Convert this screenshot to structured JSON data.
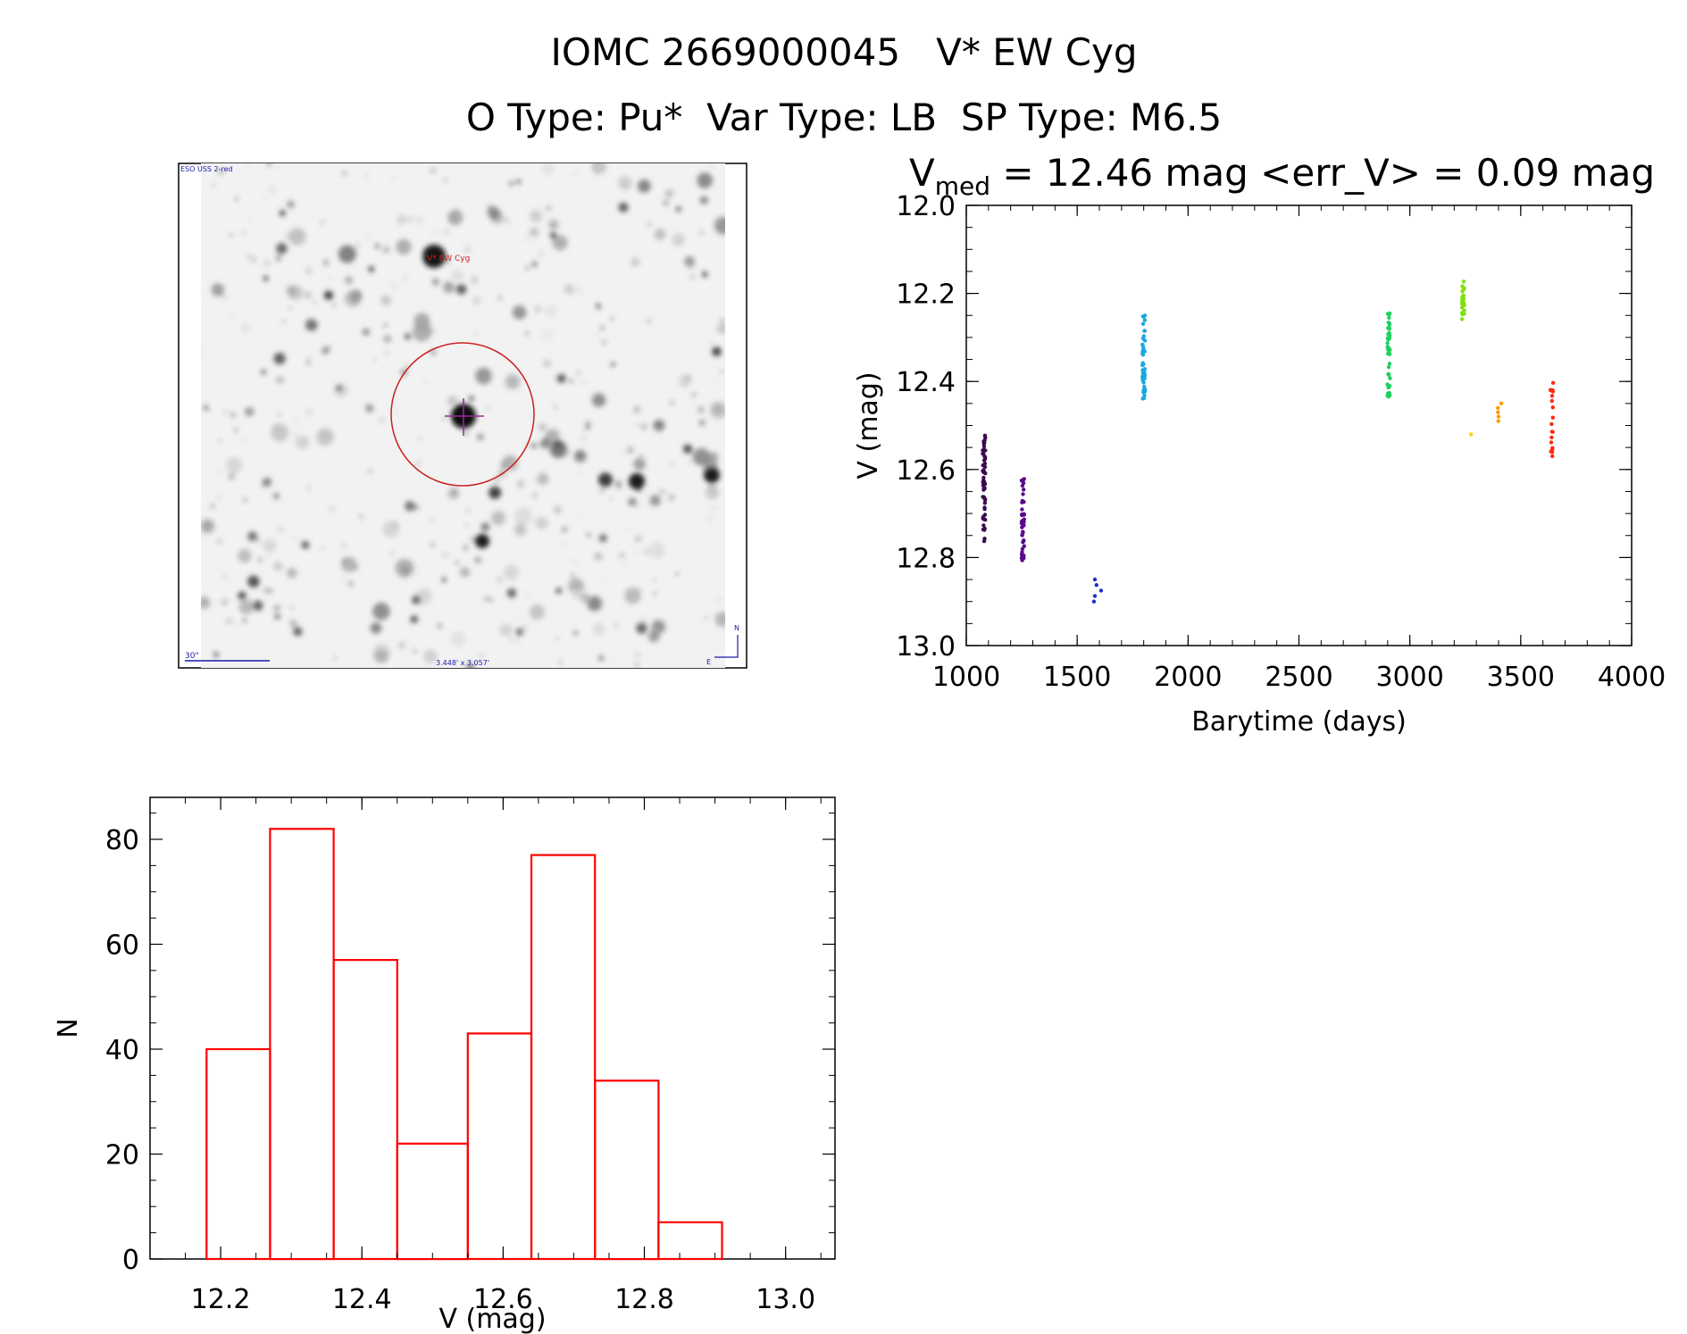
{
  "header": {
    "title_line1": "IOMC 2669000045   V* EW Cyg",
    "title_line2": "O Type: Pu*  Var Type: LB  SP Type: M6.5"
  },
  "finder_image": {
    "survey_label": "ESO USS 2-red",
    "target_label": "V* EW Cyg",
    "scale_label": "30\"",
    "fov_label": "3.448' x 3.057'",
    "north_label": "N",
    "east_label": "E",
    "colors": {
      "circle": "#cc2222",
      "cross": "#9a2a9a",
      "frame": "#000000",
      "annot": "#1a1aaa"
    }
  },
  "chart_data": [
    {
      "type": "scatter",
      "title_prefix": "V",
      "title_sub": "med",
      "title_suffix": " = 12.46 mag <err_V> = 0.09 mag",
      "xlabel": "Barytime (days)",
      "ylabel": "V (mag)",
      "xlim": [
        1000,
        4000
      ],
      "ylim": [
        13.0,
        12.0
      ],
      "xticks": [
        1000,
        1500,
        2000,
        2500,
        3000,
        3500,
        4000
      ],
      "xtick_labels": [
        "1000",
        "1500",
        "2000",
        "2500",
        "3000",
        "3500",
        "4000"
      ],
      "yticks": [
        12.0,
        12.2,
        12.4,
        12.6,
        12.8,
        13.0
      ],
      "ytick_labels": [
        "12.0",
        "12.2",
        "12.4",
        "12.6",
        "12.8",
        "13.0"
      ],
      "clusters": [
        {
          "x": 1080,
          "ymin": 12.51,
          "ymax": 12.77,
          "n": 55,
          "color": "#3a0a50"
        },
        {
          "x": 1255,
          "ymin": 12.62,
          "ymax": 12.81,
          "n": 40,
          "color": "#5a0a8a"
        },
        {
          "x": 1590,
          "ymin": 12.85,
          "ymax": 12.9,
          "n": 5,
          "color": "#2030d0"
        },
        {
          "x": 1800,
          "ymin": 12.25,
          "ymax": 12.45,
          "n": 45,
          "color": "#1aa8e0"
        },
        {
          "x": 2905,
          "ymin": 12.24,
          "ymax": 12.44,
          "n": 45,
          "color": "#20d060"
        },
        {
          "x": 3240,
          "ymin": 12.17,
          "ymax": 12.28,
          "n": 25,
          "color": "#80e010"
        },
        {
          "x": 3290,
          "ymin": 12.52,
          "ymax": 12.52,
          "n": 1,
          "color": "#ffd000"
        },
        {
          "x": 3415,
          "ymin": 12.45,
          "ymax": 12.49,
          "n": 5,
          "color": "#ff9a00"
        },
        {
          "x": 3640,
          "ymin": 12.4,
          "ymax": 12.57,
          "n": 20,
          "color": "#ff2a10"
        }
      ]
    },
    {
      "type": "bar",
      "style": "histogram-outline",
      "color": "#ff0000",
      "xlabel": "V (mag)",
      "ylabel": "N",
      "xlim": [
        12.1,
        13.07
      ],
      "ylim": [
        0,
        88
      ],
      "bin_edges": [
        12.18,
        12.27,
        12.36,
        12.45,
        12.55,
        12.64,
        12.73,
        12.82,
        12.91
      ],
      "values": [
        40,
        82,
        57,
        22,
        43,
        77,
        34,
        7
      ],
      "xticks": [
        12.2,
        12.4,
        12.6,
        12.8,
        13.0
      ],
      "xtick_labels": [
        "12.2",
        "12.4",
        "12.6",
        "12.8",
        "13.0"
      ],
      "yticks": [
        0,
        20,
        40,
        60,
        80
      ],
      "ytick_labels": [
        "0",
        "20",
        "40",
        "60",
        "80"
      ]
    }
  ]
}
